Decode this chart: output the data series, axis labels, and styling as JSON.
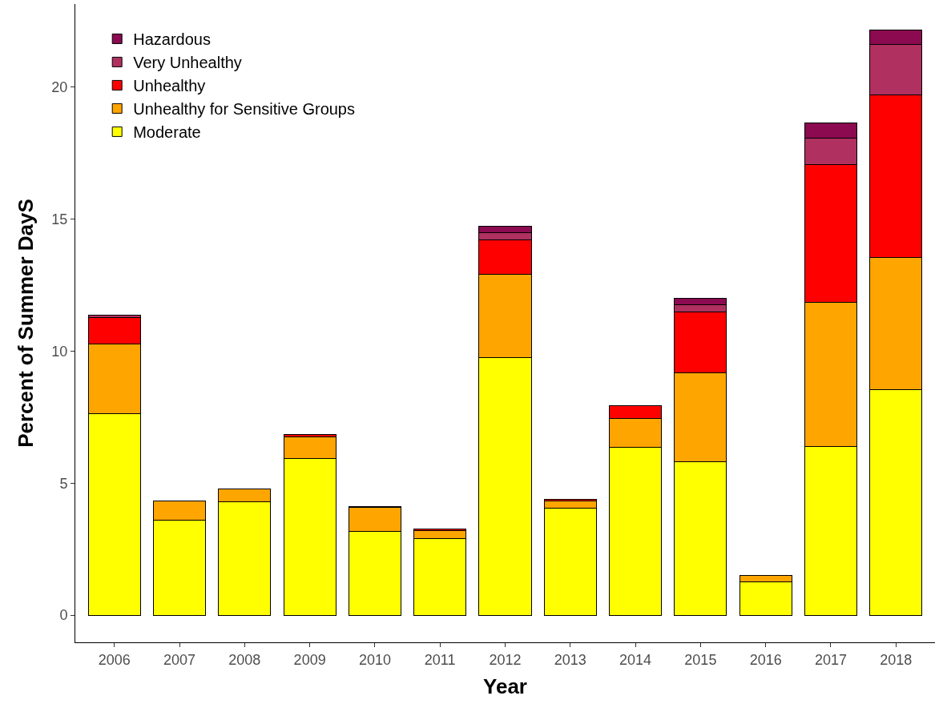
{
  "chart_data": {
    "type": "bar",
    "stacked": true,
    "xlabel": "Year",
    "ylabel": "Percent of Summer DayS",
    "categories": [
      "2006",
      "2007",
      "2008",
      "2009",
      "2010",
      "2011",
      "2012",
      "2013",
      "2014",
      "2015",
      "2016",
      "2017",
      "2018"
    ],
    "series": [
      {
        "name": "Moderate",
        "color": "#ffff00",
        "values": [
          7.62,
          3.61,
          4.29,
          5.94,
          3.17,
          2.91,
          9.75,
          4.04,
          6.36,
          5.81,
          1.25,
          6.38,
          8.53
        ]
      },
      {
        "name": "Unhealthy for Sensitive Groups",
        "color": "#ffa500",
        "values": [
          2.64,
          0.7,
          0.5,
          0.82,
          0.9,
          0.28,
          3.17,
          0.3,
          1.1,
          3.36,
          0.25,
          5.47,
          5.01
        ]
      },
      {
        "name": "Unhealthy",
        "color": "#ff0000",
        "values": [
          1.0,
          null,
          null,
          0.09,
          0.03,
          0.07,
          1.3,
          0.04,
          0.49,
          2.31,
          null,
          5.22,
          6.16
        ]
      },
      {
        "name": "Very Unhealthy",
        "color": "#b03060",
        "values": [
          0.09,
          null,
          null,
          null,
          null,
          null,
          0.27,
          null,
          null,
          0.28,
          null,
          1.0,
          1.91
        ]
      },
      {
        "name": "Hazardous",
        "color": "#8b0a50",
        "values": [
          null,
          null,
          null,
          null,
          null,
          null,
          0.24,
          null,
          null,
          0.23,
          null,
          0.57,
          0.54
        ]
      }
    ],
    "ylim": [
      -1.03,
      23.15
    ],
    "yticks": [
      0,
      5,
      10,
      15,
      20
    ],
    "legend": "top left"
  }
}
